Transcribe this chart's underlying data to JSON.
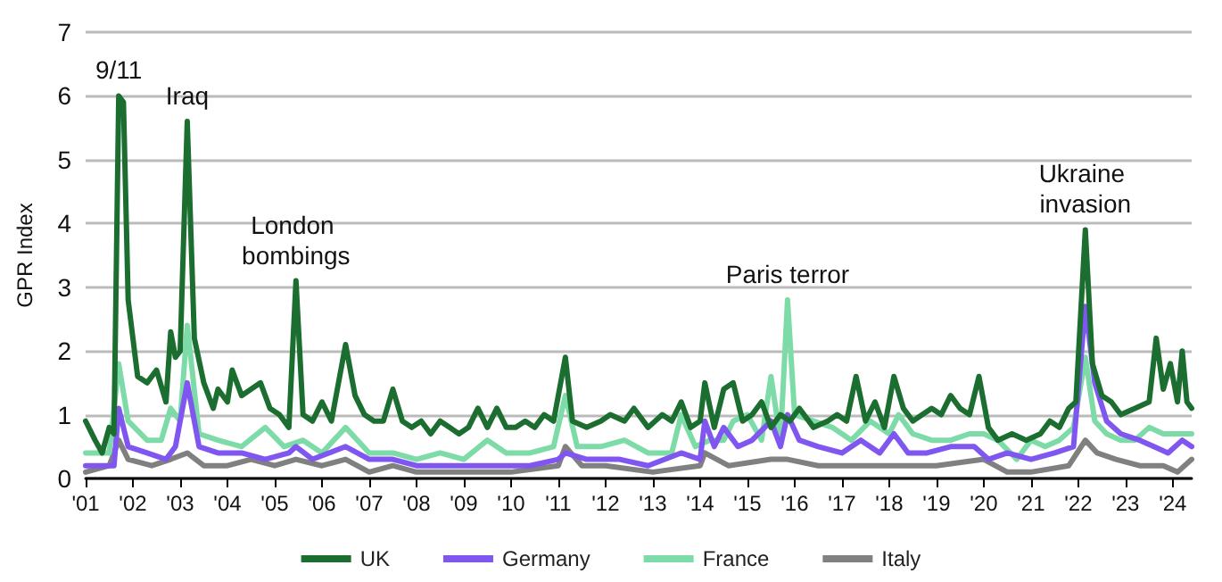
{
  "chart_data": {
    "type": "line",
    "ylabel": "GPR Index",
    "xlim": [
      2001,
      2024.4
    ],
    "ylim": [
      0,
      7
    ],
    "yticks": [
      0,
      1,
      2,
      3,
      4,
      5,
      6,
      7
    ],
    "xticks": [
      {
        "value": 2001,
        "label": "'01"
      },
      {
        "value": 2002,
        "label": "'02"
      },
      {
        "value": 2003,
        "label": "'03"
      },
      {
        "value": 2004,
        "label": "'04"
      },
      {
        "value": 2005,
        "label": "'05"
      },
      {
        "value": 2006,
        "label": "'06"
      },
      {
        "value": 2007,
        "label": "'07"
      },
      {
        "value": 2008,
        "label": "'08"
      },
      {
        "value": 2009,
        "label": "'09"
      },
      {
        "value": 2010,
        "label": "'10"
      },
      {
        "value": 2011,
        "label": "'11"
      },
      {
        "value": 2012,
        "label": "'12"
      },
      {
        "value": 2013,
        "label": "'13"
      },
      {
        "value": 2014,
        "label": "'14"
      },
      {
        "value": 2015,
        "label": "'15"
      },
      {
        "value": 2016,
        "label": "'16"
      },
      {
        "value": 2017,
        "label": "'17"
      },
      {
        "value": 2018,
        "label": "'18"
      },
      {
        "value": 2019,
        "label": "'19"
      },
      {
        "value": 2020,
        "label": "'20"
      },
      {
        "value": 2021,
        "label": "'21"
      },
      {
        "value": 2022,
        "label": "'22"
      },
      {
        "value": 2023,
        "label": "'23"
      },
      {
        "value": 2024,
        "label": "'24"
      }
    ],
    "grid": "y",
    "legend": "bottom",
    "marker": "none",
    "line_style": "solid",
    "annotations": [
      {
        "text": "9/11",
        "x": 2001.7,
        "y": 6.0
      },
      {
        "text": "Iraq",
        "x": 2003.15,
        "y": 5.6
      },
      {
        "text": "London bombings",
        "x": 2005.45,
        "y": 3.1
      },
      {
        "text": "Paris terror",
        "x": 2015.85,
        "y": 2.8
      },
      {
        "text": "Ukraine invasion",
        "x": 2022.15,
        "y": 3.9
      }
    ],
    "series": [
      {
        "name": "UK",
        "color": "#1b6e2f",
        "x": [
          2001.0,
          2001.2,
          2001.35,
          2001.5,
          2001.6,
          2001.7,
          2001.8,
          2001.9,
          2002.1,
          2002.3,
          2002.5,
          2002.7,
          2002.8,
          2002.9,
          2003.0,
          2003.15,
          2003.3,
          2003.5,
          2003.7,
          2003.8,
          2004.0,
          2004.1,
          2004.3,
          2004.5,
          2004.7,
          2004.9,
          2005.1,
          2005.3,
          2005.45,
          2005.6,
          2005.8,
          2006.0,
          2006.2,
          2006.5,
          2006.7,
          2006.9,
          2007.1,
          2007.3,
          2007.5,
          2007.7,
          2007.9,
          2008.1,
          2008.3,
          2008.5,
          2008.7,
          2008.9,
          2009.1,
          2009.3,
          2009.5,
          2009.7,
          2009.9,
          2010.1,
          2010.3,
          2010.5,
          2010.7,
          2010.9,
          2011.15,
          2011.3,
          2011.6,
          2011.9,
          2012.1,
          2012.4,
          2012.6,
          2012.9,
          2013.2,
          2013.4,
          2013.6,
          2013.8,
          2014.0,
          2014.1,
          2014.3,
          2014.5,
          2014.7,
          2014.9,
          2015.1,
          2015.3,
          2015.5,
          2015.7,
          2015.9,
          2016.1,
          2016.4,
          2016.7,
          2016.9,
          2017.1,
          2017.3,
          2017.5,
          2017.7,
          2017.9,
          2018.1,
          2018.3,
          2018.5,
          2018.7,
          2018.9,
          2019.1,
          2019.3,
          2019.5,
          2019.7,
          2019.9,
          2020.1,
          2020.3,
          2020.6,
          2020.9,
          2021.2,
          2021.4,
          2021.6,
          2021.8,
          2021.95,
          2022.15,
          2022.3,
          2022.5,
          2022.7,
          2022.9,
          2023.2,
          2023.5,
          2023.65,
          2023.8,
          2023.95,
          2024.1,
          2024.2,
          2024.3,
          2024.4
        ],
        "values": [
          0.9,
          0.6,
          0.4,
          0.8,
          0.7,
          6.0,
          5.9,
          2.8,
          1.6,
          1.5,
          1.7,
          1.2,
          2.3,
          1.9,
          2.0,
          5.6,
          2.2,
          1.5,
          1.1,
          1.4,
          1.2,
          1.7,
          1.3,
          1.4,
          1.5,
          1.1,
          1.0,
          0.8,
          3.1,
          1.0,
          0.9,
          1.2,
          0.9,
          2.1,
          1.3,
          1.0,
          0.9,
          0.9,
          1.4,
          0.9,
          0.8,
          0.9,
          0.7,
          0.9,
          0.8,
          0.7,
          0.8,
          1.1,
          0.8,
          1.1,
          0.8,
          0.8,
          0.9,
          0.8,
          1.0,
          0.9,
          1.9,
          0.9,
          0.8,
          0.9,
          1.0,
          0.9,
          1.1,
          0.8,
          1.0,
          0.9,
          1.2,
          0.8,
          0.9,
          1.5,
          0.8,
          1.4,
          1.5,
          0.9,
          1.0,
          1.2,
          0.8,
          1.0,
          0.9,
          1.1,
          0.8,
          0.9,
          1.0,
          0.9,
          1.6,
          0.9,
          1.2,
          0.8,
          1.6,
          1.1,
          0.9,
          1.0,
          1.1,
          1.0,
          1.3,
          1.1,
          1.0,
          1.6,
          0.8,
          0.6,
          0.7,
          0.6,
          0.7,
          0.9,
          0.8,
          1.1,
          1.2,
          3.9,
          1.8,
          1.3,
          1.2,
          1.0,
          1.1,
          1.2,
          2.2,
          1.4,
          1.8,
          1.2,
          2.0,
          1.2,
          1.1
        ]
      },
      {
        "name": "Germany",
        "color": "#7f57f0",
        "x": [
          2001.0,
          2001.6,
          2001.7,
          2001.9,
          2002.3,
          2002.7,
          2002.9,
          2003.15,
          2003.4,
          2003.8,
          2004.3,
          2004.8,
          2005.3,
          2005.45,
          2005.8,
          2006.5,
          2007.0,
          2007.5,
          2008.0,
          2008.6,
          2009.2,
          2009.8,
          2010.4,
          2011.0,
          2011.15,
          2011.6,
          2012.3,
          2012.9,
          2013.6,
          2014.0,
          2014.1,
          2014.3,
          2014.5,
          2014.8,
          2015.1,
          2015.5,
          2015.7,
          2015.85,
          2016.1,
          2016.5,
          2017.0,
          2017.4,
          2017.8,
          2018.1,
          2018.4,
          2018.8,
          2019.3,
          2019.8,
          2020.1,
          2020.5,
          2021.0,
          2021.5,
          2021.9,
          2022.15,
          2022.35,
          2022.6,
          2022.9,
          2023.3,
          2023.6,
          2023.9,
          2024.2,
          2024.4
        ],
        "values": [
          0.2,
          0.2,
          1.1,
          0.5,
          0.4,
          0.3,
          0.5,
          1.5,
          0.5,
          0.4,
          0.4,
          0.3,
          0.4,
          0.5,
          0.3,
          0.5,
          0.3,
          0.3,
          0.2,
          0.2,
          0.2,
          0.2,
          0.2,
          0.3,
          0.4,
          0.3,
          0.3,
          0.2,
          0.4,
          0.3,
          0.9,
          0.5,
          0.8,
          0.5,
          0.6,
          0.9,
          0.5,
          1.0,
          0.6,
          0.5,
          0.4,
          0.6,
          0.4,
          0.7,
          0.4,
          0.4,
          0.5,
          0.5,
          0.3,
          0.4,
          0.3,
          0.4,
          0.5,
          2.7,
          1.5,
          0.9,
          0.7,
          0.6,
          0.5,
          0.4,
          0.6,
          0.5
        ]
      },
      {
        "name": "France",
        "color": "#7ddba8",
        "x": [
          2001.0,
          2001.5,
          2001.7,
          2001.9,
          2002.3,
          2002.6,
          2002.8,
          2003.0,
          2003.15,
          2003.4,
          2003.8,
          2004.3,
          2004.8,
          2005.2,
          2005.6,
          2006.0,
          2006.5,
          2007.0,
          2007.5,
          2008.0,
          2008.5,
          2009.0,
          2009.5,
          2009.9,
          2010.4,
          2010.9,
          2011.15,
          2011.4,
          2011.9,
          2012.4,
          2012.9,
          2013.4,
          2013.6,
          2013.9,
          2014.2,
          2014.5,
          2014.7,
          2015.0,
          2015.3,
          2015.5,
          2015.7,
          2015.85,
          2016.0,
          2016.4,
          2016.8,
          2017.2,
          2017.6,
          2018.0,
          2018.2,
          2018.5,
          2018.9,
          2019.3,
          2019.7,
          2020.0,
          2020.3,
          2020.7,
          2021.0,
          2021.3,
          2021.6,
          2021.9,
          2022.15,
          2022.35,
          2022.6,
          2022.9,
          2023.2,
          2023.5,
          2023.8,
          2024.1,
          2024.4
        ],
        "values": [
          0.4,
          0.4,
          1.8,
          0.9,
          0.6,
          0.6,
          1.1,
          0.9,
          2.4,
          0.7,
          0.6,
          0.5,
          0.8,
          0.5,
          0.6,
          0.4,
          0.8,
          0.4,
          0.4,
          0.3,
          0.4,
          0.3,
          0.6,
          0.4,
          0.4,
          0.5,
          1.3,
          0.5,
          0.5,
          0.6,
          0.4,
          0.4,
          1.0,
          0.5,
          0.6,
          0.6,
          0.9,
          1.0,
          0.6,
          1.6,
          0.6,
          2.8,
          1.0,
          0.9,
          0.8,
          0.6,
          0.9,
          0.7,
          1.0,
          0.7,
          0.6,
          0.6,
          0.7,
          0.7,
          0.6,
          0.3,
          0.6,
          0.5,
          0.6,
          0.8,
          1.9,
          0.9,
          0.7,
          0.6,
          0.6,
          0.8,
          0.7,
          0.7,
          0.7
        ]
      },
      {
        "name": "Italy",
        "color": "#808080",
        "x": [
          2001.0,
          2001.5,
          2001.7,
          2001.9,
          2002.4,
          2002.8,
          2003.15,
          2003.5,
          2004.0,
          2004.5,
          2005.0,
          2005.45,
          2006.0,
          2006.5,
          2007.0,
          2007.5,
          2008.0,
          2009.0,
          2010.0,
          2011.0,
          2011.15,
          2011.5,
          2012.0,
          2013.0,
          2014.0,
          2014.1,
          2014.6,
          2015.5,
          2015.85,
          2016.5,
          2017.0,
          2018.0,
          2019.0,
          2020.0,
          2020.5,
          2021.0,
          2021.8,
          2022.15,
          2022.4,
          2022.8,
          2023.3,
          2023.8,
          2024.1,
          2024.4
        ],
        "values": [
          0.1,
          0.2,
          0.6,
          0.3,
          0.2,
          0.3,
          0.4,
          0.2,
          0.2,
          0.3,
          0.2,
          0.3,
          0.2,
          0.3,
          0.1,
          0.2,
          0.1,
          0.1,
          0.1,
          0.2,
          0.5,
          0.2,
          0.2,
          0.1,
          0.2,
          0.4,
          0.2,
          0.3,
          0.3,
          0.2,
          0.2,
          0.2,
          0.2,
          0.3,
          0.1,
          0.1,
          0.2,
          0.6,
          0.4,
          0.3,
          0.2,
          0.2,
          0.1,
          0.3
        ]
      }
    ]
  }
}
